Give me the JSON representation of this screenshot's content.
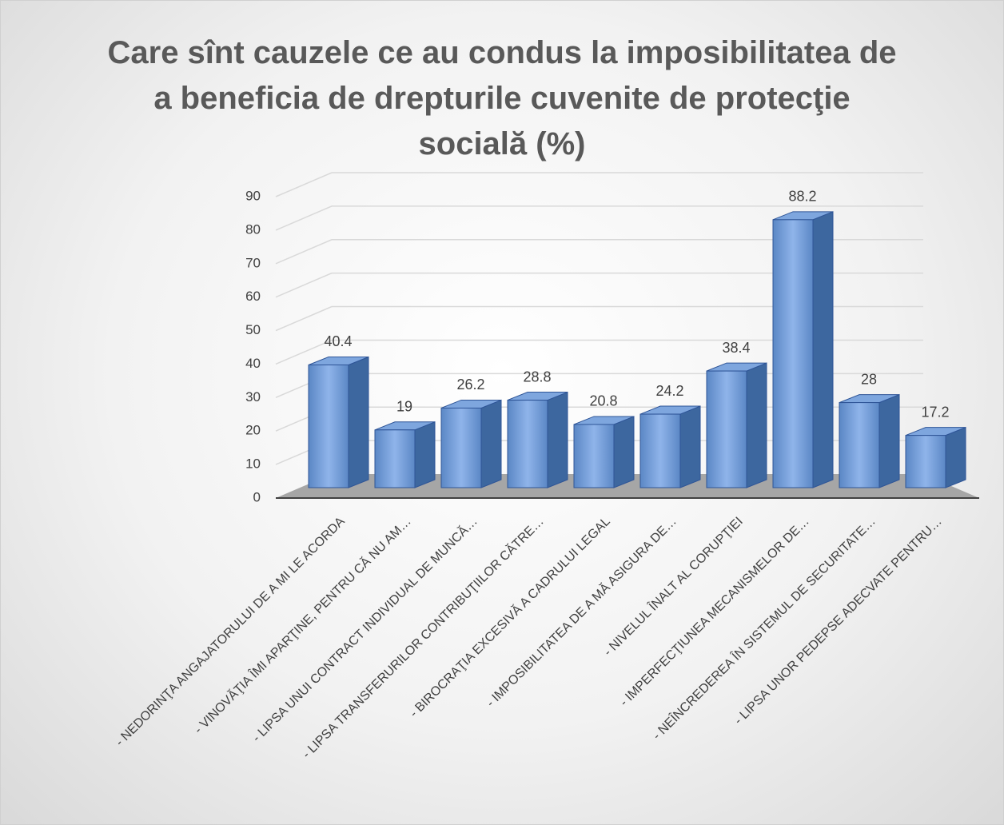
{
  "chart_data": {
    "type": "bar3d",
    "title": "Care sînt cauzele ce au condus la imposibilitatea de a beneficia de drepturile cuvenite de protecţie socială (%)",
    "categories": [
      "- NEDORINŢA ANGAJATORULUI DE A MI LE ACORDA",
      "- VINOVĂŢIA ÎMI APARŢINE, PENTRU CĂ NU AM…",
      "- LIPSA UNUI CONTRACT INDIVIDUAL DE MUNCĂ…",
      "- LIPSA TRANSFERURILOR CONTRIBUŢIILOR CĂTRE…",
      "- BIROCRAŢIA EXCESIVĂ A CADRULUI LEGAL",
      "- IMPOSIBILITATEA DE A MĂ ASIGURA DE…",
      "- NIVELUL ÎNALT AL CORUPŢIEI",
      "- IMPERFECŢIUNEA MECANISMELOR DE…",
      "- NEÎNCREDEREA ÎN SISTEMUL DE SECURITATE…",
      "- LIPSA UNOR PEDEPSE ADECVATE PENTRU…"
    ],
    "values": [
      40.4,
      19,
      26.2,
      28.8,
      20.8,
      24.2,
      38.4,
      88.2,
      28,
      17.2
    ],
    "color": "#5b87c5",
    "ylim": [
      0,
      90
    ],
    "yticks": [
      0,
      10,
      20,
      30,
      40,
      50,
      60,
      70,
      80,
      90
    ],
    "grid": true
  }
}
